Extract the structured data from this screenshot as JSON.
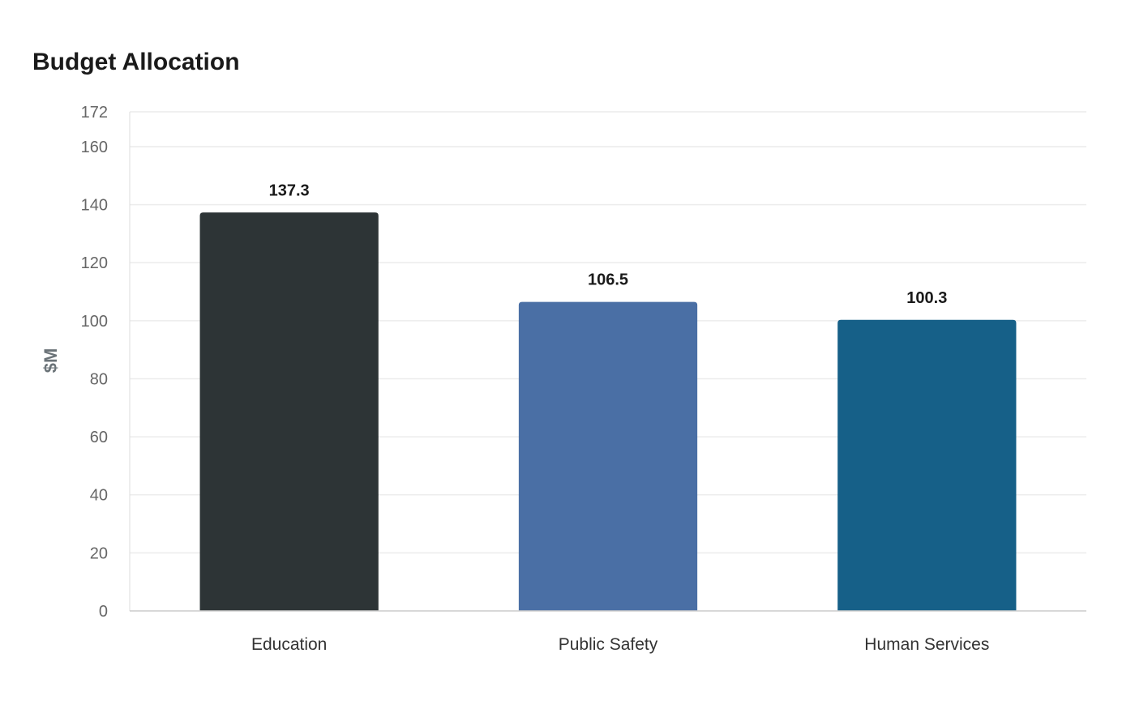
{
  "chart_data": {
    "type": "bar",
    "title": "Budget Allocation",
    "ylabel": "$M",
    "xlabel": "",
    "categories": [
      "Education",
      "Public Safety",
      "Human Services"
    ],
    "values": [
      137.3,
      106.5,
      100.3
    ],
    "value_labels": [
      "137.3",
      "106.5",
      "100.3"
    ],
    "colors": [
      "#2d3436",
      "#4a6fa5",
      "#166088"
    ],
    "ylim": [
      0,
      172
    ],
    "yticks": [
      0,
      20,
      40,
      60,
      80,
      100,
      120,
      140,
      160,
      172
    ],
    "grid": true,
    "legend": "none"
  }
}
